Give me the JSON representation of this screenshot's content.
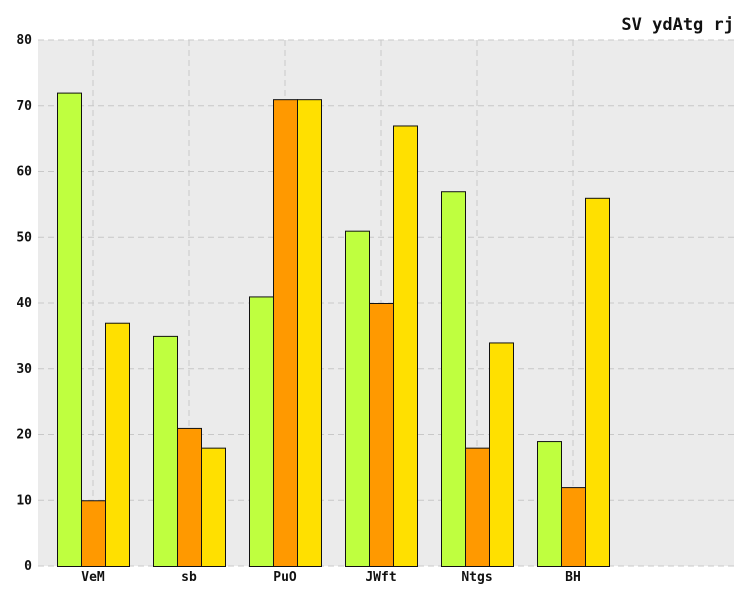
{
  "chart_data": {
    "type": "bar",
    "title": "SV ydAtg rj",
    "xlabel": "",
    "ylabel": "",
    "categories": [
      "VeM",
      "sb",
      "PuO",
      "JWft",
      "Ntgs",
      "BH"
    ],
    "series": [
      {
        "values": [
          72,
          35,
          41,
          51,
          57,
          19
        ],
        "color": "#bfff3f"
      },
      {
        "values": [
          10,
          21,
          71,
          40,
          18,
          12
        ],
        "color": "#ff9900"
      },
      {
        "values": [
          37,
          18,
          71,
          67,
          34,
          56
        ],
        "color": "#ffe000"
      }
    ],
    "ylim": [
      0,
      80
    ],
    "yticks": [
      0,
      10,
      20,
      30,
      40,
      50,
      60,
      70,
      80
    ],
    "grid": true,
    "plot_background": "#ebebeb",
    "grid_color": "#c8c8c8",
    "legend": "none"
  }
}
